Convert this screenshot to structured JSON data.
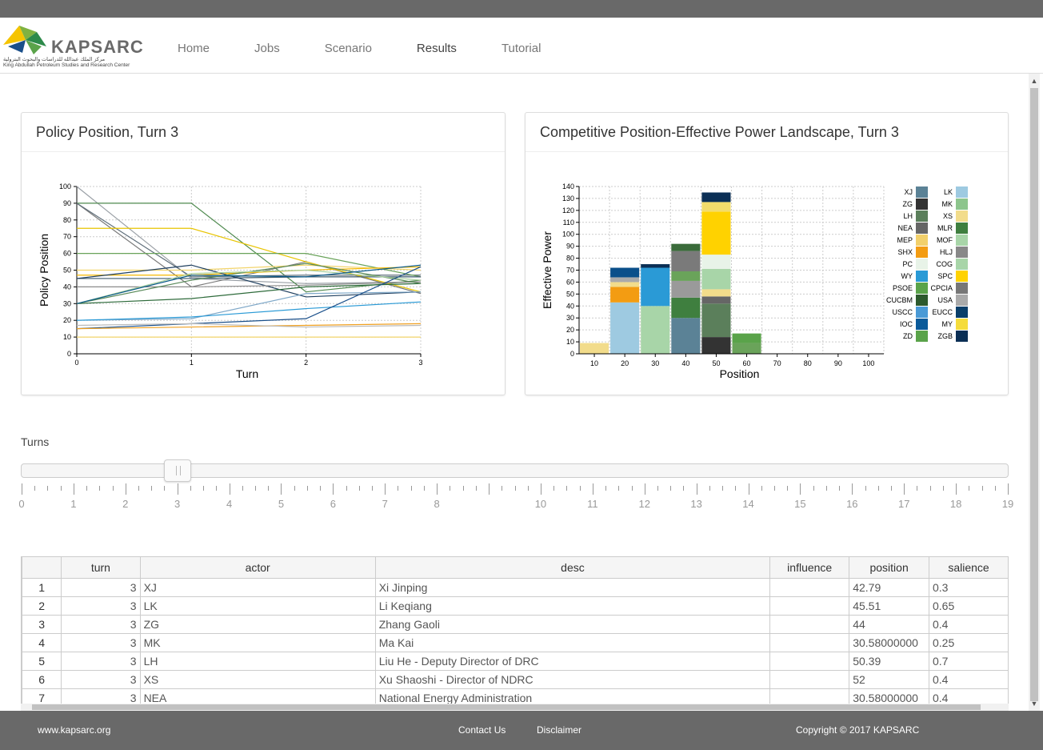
{
  "header": {
    "logo_text": "KAPSARC",
    "logo_arabic": "مركز الملك عبدالله للدراسات والبحوث البترولية",
    "logo_english": "King Abdullah Petroleum Studies and Research Center",
    "nav": [
      "Home",
      "Jobs",
      "Scenario",
      "Results",
      "Tutorial"
    ],
    "active_nav": "Results"
  },
  "left_panel": {
    "title": "Policy Position, Turn 3"
  },
  "right_panel": {
    "title": "Competitive Position-Effective Power Landscape, Turn 3"
  },
  "chart_data": [
    {
      "type": "line",
      "xlabel": "Turn",
      "ylabel": "Policy Position",
      "x": [
        0,
        1,
        2,
        3
      ],
      "xlim": [
        0,
        3
      ],
      "ylim": [
        0,
        100
      ],
      "yticks": [
        0,
        10,
        20,
        30,
        40,
        50,
        60,
        70,
        80,
        90,
        100
      ],
      "grid": true,
      "series": [
        {
          "values": [
            100,
            45,
            42,
            43
          ],
          "color": "#9aa0a6"
        },
        {
          "values": [
            90,
            90,
            37,
            44
          ],
          "color": "#4f8a4f"
        },
        {
          "values": [
            90,
            40,
            55,
            36
          ],
          "color": "#7a7a7a"
        },
        {
          "values": [
            90,
            46,
            47,
            47
          ],
          "color": "#5f6e7a"
        },
        {
          "values": [
            75,
            75,
            55,
            37
          ],
          "color": "#e8c400"
        },
        {
          "values": [
            60,
            60,
            60,
            46
          ],
          "color": "#6aa35a"
        },
        {
          "values": [
            50,
            50,
            53,
            50
          ],
          "color": "#f2d46b"
        },
        {
          "values": [
            47,
            47,
            50,
            52
          ],
          "color": "#f5b800"
        },
        {
          "values": [
            45,
            45,
            46,
            46
          ],
          "color": "#3d5a6c"
        },
        {
          "values": [
            45,
            53,
            34,
            37
          ],
          "color": "#1f3f5f"
        },
        {
          "values": [
            40,
            40,
            41,
            43
          ],
          "color": "#8c8c8c"
        },
        {
          "values": [
            30,
            33,
            40,
            42
          ],
          "color": "#2d6a3a"
        },
        {
          "values": [
            30,
            44,
            54,
            42
          ],
          "color": "#5a8a5a"
        },
        {
          "values": [
            30,
            48,
            50,
            44
          ],
          "color": "#a9cf9d"
        },
        {
          "values": [
            30,
            47,
            46,
            53
          ],
          "color": "#0a5a8a"
        },
        {
          "values": [
            20,
            21,
            36,
            37
          ],
          "color": "#7fa8c8"
        },
        {
          "values": [
            20,
            22,
            27,
            31
          ],
          "color": "#2a9ad6"
        },
        {
          "values": [
            15,
            18,
            21,
            52
          ],
          "color": "#1a4f8a"
        },
        {
          "values": [
            15,
            16,
            17,
            18
          ],
          "color": "#f0a020"
        },
        {
          "values": [
            17,
            18,
            16,
            17
          ],
          "color": "#bbbbbb"
        },
        {
          "values": [
            10,
            10,
            10,
            10
          ],
          "color": "#f2d46b"
        }
      ]
    },
    {
      "type": "bar",
      "xlabel": "Position",
      "ylabel": "Effective Power",
      "categories": [
        10,
        20,
        30,
        40,
        50,
        60,
        70,
        80,
        90,
        100
      ],
      "ylim": [
        0,
        140
      ],
      "yticks": [
        0,
        10,
        20,
        30,
        40,
        50,
        60,
        70,
        80,
        90,
        100,
        110,
        120,
        130,
        140
      ],
      "grid": true,
      "stacks": [
        [
          {
            "v": 9,
            "c": "#f2dc8b"
          }
        ],
        [
          {
            "v": 43,
            "c": "#9ecae1"
          },
          {
            "v": 13,
            "c": "#f39c12"
          },
          {
            "v": 4,
            "c": "#f2dc8b"
          },
          {
            "v": 4,
            "c": "#aaaaaa"
          },
          {
            "v": 8,
            "c": "#0a4f8a"
          }
        ],
        [
          {
            "v": 40,
            "c": "#a8d5a8"
          },
          {
            "v": 32,
            "c": "#2a9ad6"
          },
          {
            "v": 3,
            "c": "#0b2f55"
          }
        ],
        [
          {
            "v": 30,
            "c": "#5b8296"
          },
          {
            "v": 17,
            "c": "#3f7f3f"
          },
          {
            "v": 14,
            "c": "#9a9a9a"
          },
          {
            "v": 8,
            "c": "#6aa35a"
          },
          {
            "v": 17,
            "c": "#7a7a7a"
          },
          {
            "v": 6,
            "c": "#3a6b3a"
          }
        ],
        [
          {
            "v": 14,
            "c": "#333333"
          },
          {
            "v": 28,
            "c": "#5b7f5b"
          },
          {
            "v": 6,
            "c": "#666666"
          },
          {
            "v": 6,
            "c": "#f2dc8b"
          },
          {
            "v": 17,
            "c": "#a8d5a8"
          },
          {
            "v": 12,
            "c": "#e8f3e8"
          },
          {
            "v": 36,
            "c": "#ffd200"
          },
          {
            "v": 8,
            "c": "#f2dc6b"
          },
          {
            "v": 8,
            "c": "#0b2f55"
          }
        ],
        [
          {
            "v": 9,
            "c": "#6aa35a"
          },
          {
            "v": 8,
            "c": "#5aa34a"
          }
        ],
        [],
        [],
        [],
        []
      ],
      "legend": [
        {
          "name": "XJ",
          "color": "#5b8296"
        },
        {
          "name": "LK",
          "color": "#9ecae1"
        },
        {
          "name": "ZG",
          "color": "#333333"
        },
        {
          "name": "MK",
          "color": "#8dc58d"
        },
        {
          "name": "LH",
          "color": "#5b7f5b"
        },
        {
          "name": "XS",
          "color": "#f2dc8b"
        },
        {
          "name": "NEA",
          "color": "#666666"
        },
        {
          "name": "MLR",
          "color": "#3f7f3f"
        },
        {
          "name": "MEP",
          "color": "#f2d06b"
        },
        {
          "name": "MOF",
          "color": "#a8d5a8"
        },
        {
          "name": "SHX",
          "color": "#f39c12"
        },
        {
          "name": "HLJ",
          "color": "#888888"
        },
        {
          "name": "PC",
          "color": "#e8f3e8"
        },
        {
          "name": "COG",
          "color": "#a8d5a8"
        },
        {
          "name": "WY",
          "color": "#2a9ad6"
        },
        {
          "name": "SPC",
          "color": "#ffd200"
        },
        {
          "name": "PSOE",
          "color": "#5aa34a"
        },
        {
          "name": "CPCIA",
          "color": "#777777"
        },
        {
          "name": "CUCBM",
          "color": "#2d5a2d"
        },
        {
          "name": "USA",
          "color": "#aaaaaa"
        },
        {
          "name": "USCC",
          "color": "#4a9ad6"
        },
        {
          "name": "EUCC",
          "color": "#0a3f6a"
        },
        {
          "name": "IOC",
          "color": "#0a5a9a"
        },
        {
          "name": "MY",
          "color": "#f5dc3b"
        },
        {
          "name": "ZD",
          "color": "#5aa34a"
        },
        {
          "name": "ZGB",
          "color": "#0b2f55"
        }
      ]
    }
  ],
  "slider": {
    "label": "Turns",
    "value": 3,
    "tick_labels": [
      "0",
      "1",
      "2",
      "3",
      "4",
      "5",
      "6",
      "7",
      "8",
      "10",
      "11",
      "12",
      "13",
      "14",
      "15",
      "16",
      "17",
      "18",
      "19"
    ]
  },
  "table": {
    "columns": [
      "",
      "turn",
      "actor",
      "desc",
      "influence",
      "position",
      "salience"
    ],
    "rows": [
      [
        "1",
        "3",
        "XJ",
        "Xi Jinping",
        "",
        "42.79",
        "0.3"
      ],
      [
        "2",
        "3",
        "LK",
        "Li Keqiang",
        "",
        "45.51",
        "0.65"
      ],
      [
        "3",
        "3",
        "ZG",
        "Zhang Gaoli",
        "",
        "44",
        "0.4"
      ],
      [
        "4",
        "3",
        "MK",
        "Ma Kai",
        "",
        "30.58000000",
        "0.25"
      ],
      [
        "5",
        "3",
        "LH",
        "Liu He - Deputy Director of DRC",
        "",
        "50.39",
        "0.7"
      ],
      [
        "6",
        "3",
        "XS",
        "Xu Shaoshi - Director of NDRC",
        "",
        "52",
        "0.4"
      ],
      [
        "7",
        "3",
        "NEA",
        "National Energy Administration",
        "",
        "30.58000000",
        "0.4"
      ]
    ]
  },
  "footer": {
    "site": "www.kapsarc.org",
    "contact": "Contact Us",
    "disclaimer": "Disclaimer",
    "copyright": "Copyright © 2017 KAPSARC"
  }
}
